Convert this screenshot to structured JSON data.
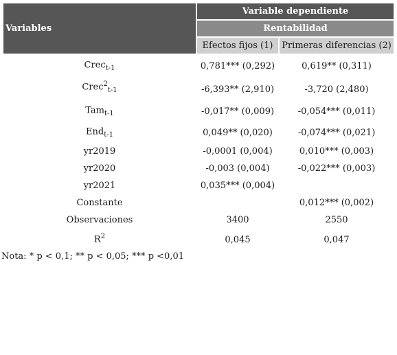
{
  "header": {
    "variables": "Variables",
    "dependent": "Variable dependiente",
    "group": "Rentabilidad",
    "col1": "Efectos fijos (1)",
    "col2": "Primeras diferencias (2)"
  },
  "rows": [
    {
      "label": "Crec",
      "sup": "",
      "sub": "t-1",
      "c1": "0,781*** (0,292)",
      "c2": "0,619** (0,311)"
    },
    {
      "label": "Crec",
      "sup": "2",
      "sub": "t-1",
      "c1": "-6,393** (2,910)",
      "c2": "-3,720 (2,480)"
    },
    {
      "label": "Tam",
      "sup": "",
      "sub": "t-1",
      "c1": "-0,017** (0,009)",
      "c2": "-0,054*** (0,011)"
    },
    {
      "label": "End",
      "sup": "",
      "sub": "t-1",
      "c1": "0,049** (0,020)",
      "c2": "-0,074*** (0,021)"
    },
    {
      "label": "yr2019",
      "sup": "",
      "sub": "",
      "c1": "-0,0001 (0,004)",
      "c2": "0,010*** (0,003)"
    },
    {
      "label": "yr2020",
      "sup": "",
      "sub": "",
      "c1": "-0,003 (0,004)",
      "c2": "-0,022*** (0,003)"
    },
    {
      "label": "yr2021",
      "sup": "",
      "sub": "",
      "c1": "0,035*** (0,004)",
      "c2": ""
    },
    {
      "label": "Constante",
      "sup": "",
      "sub": "",
      "c1": "",
      "c2": "0,012*** (0,002)"
    },
    {
      "label": "Observaciones",
      "sup": "",
      "sub": "",
      "c1": "3400",
      "c2": "2550"
    },
    {
      "label": "R",
      "sup": "2",
      "sub": "",
      "c1": "0,045",
      "c2": "0,047"
    }
  ],
  "note": "Nota: * p < 0,1; ** p < 0,05; *** p <0,01"
}
